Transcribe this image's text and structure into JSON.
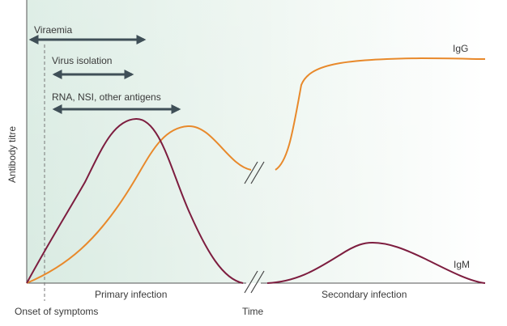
{
  "axes": {
    "y_label": "Antibody titre",
    "x_label": "Time"
  },
  "phases": {
    "primary": "Primary infection",
    "secondary": "Secondary infection",
    "onset": "Onset of symptoms"
  },
  "arrows": {
    "viraemia": "Viraemia",
    "virus_isolation": "Virus isolation",
    "rna": "RNA, NSI, other antigens"
  },
  "curves": {
    "igg": {
      "label": "IgG",
      "color": "#e8892b"
    },
    "igm": {
      "label": "IgM",
      "color": "#7d1d3f"
    }
  },
  "colors": {
    "arrow": "#3f4f57",
    "axis": "#555555",
    "shade": "#d9ebe2"
  }
}
